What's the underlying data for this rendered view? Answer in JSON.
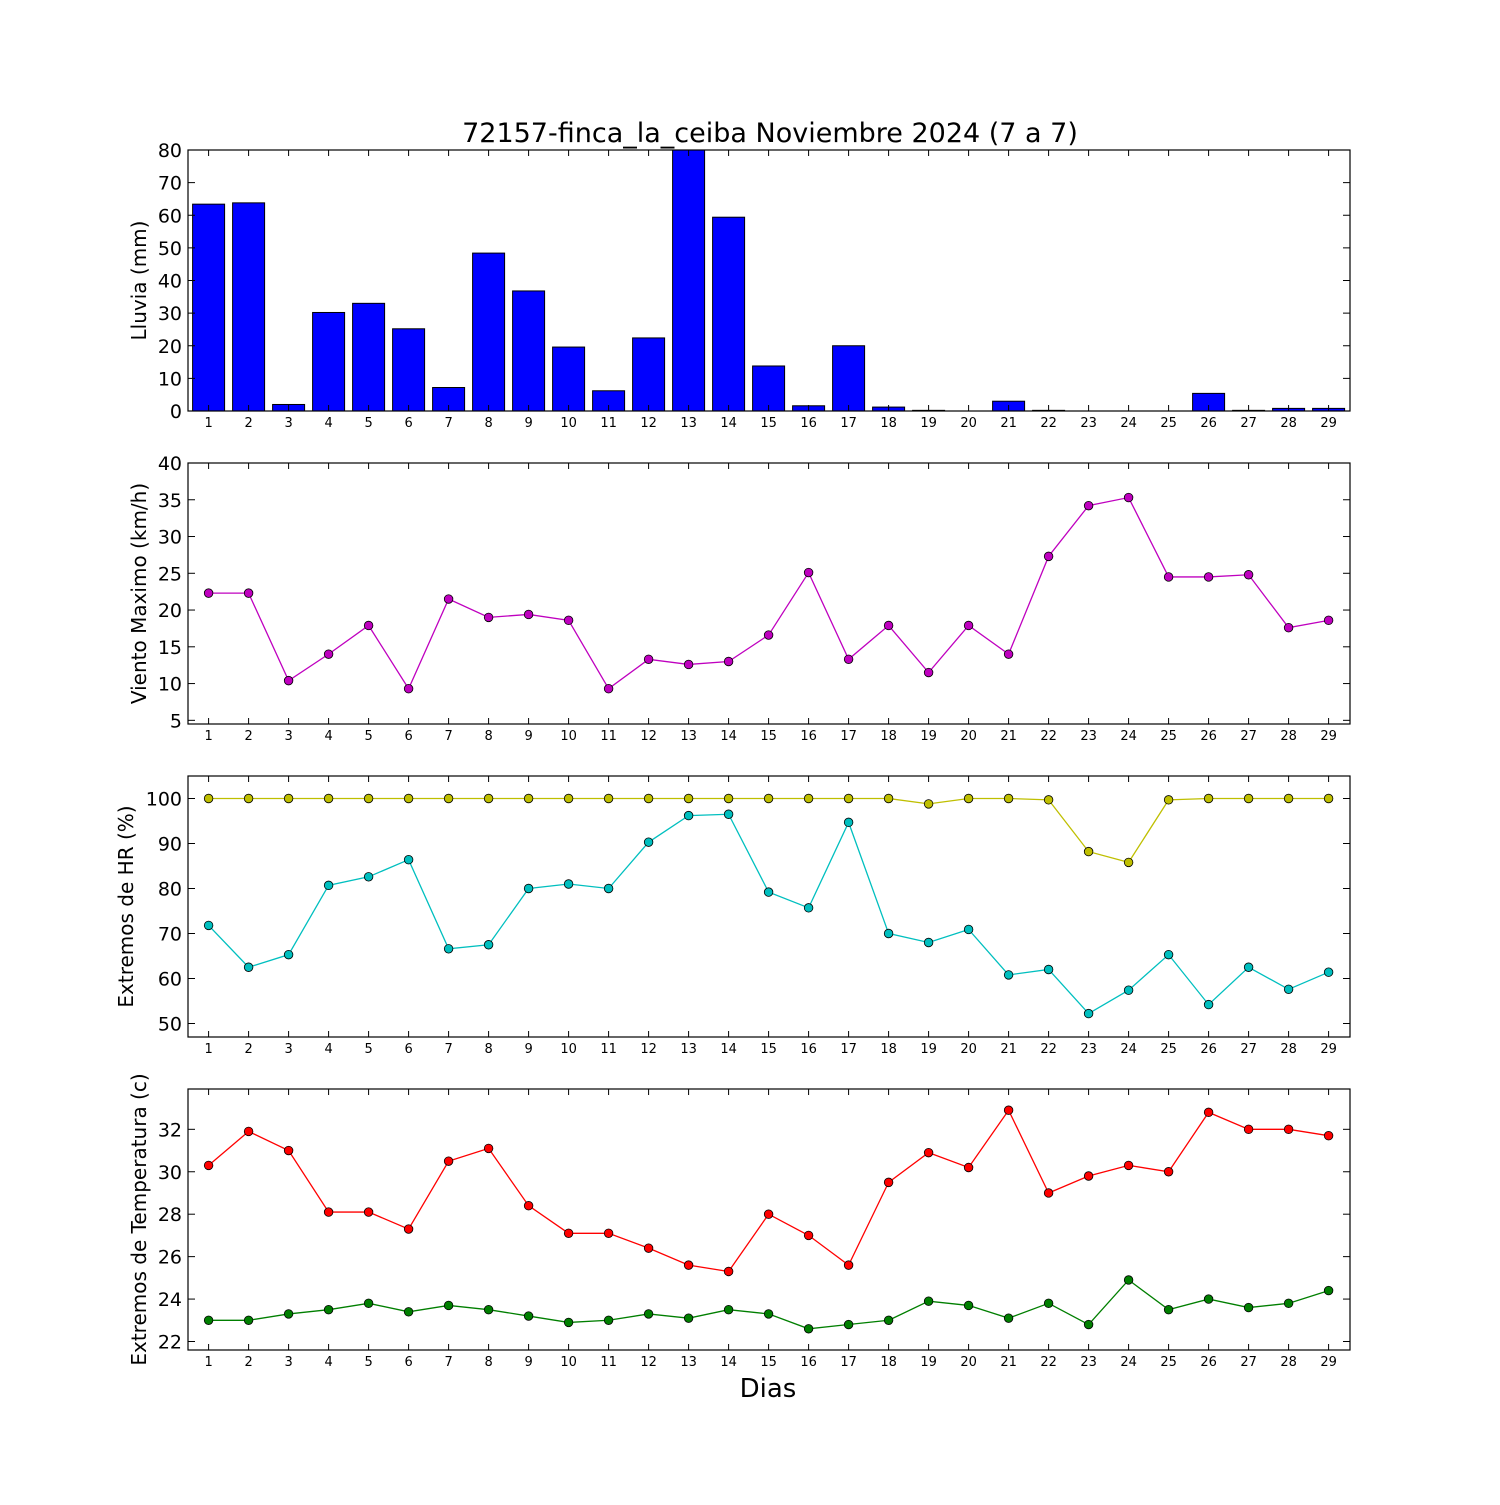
{
  "chart_data": {
    "title": "72157-finca_la_ceiba Noviembre 2024  (7 a 7)",
    "xlabel": "Dias",
    "categories": [
      1,
      2,
      3,
      4,
      5,
      6,
      7,
      8,
      9,
      10,
      11,
      12,
      13,
      14,
      15,
      16,
      17,
      18,
      19,
      20,
      21,
      22,
      23,
      24,
      25,
      26,
      27,
      28,
      29
    ],
    "panels": [
      {
        "type": "bar",
        "ylabel": "Lluvia (mm)",
        "ylim": [
          0,
          80
        ],
        "yticks": [
          0,
          10,
          20,
          30,
          40,
          50,
          60,
          70,
          80
        ],
        "series": [
          {
            "color": "#0000ff",
            "values": [
              63.4,
              63.8,
              2.0,
              30.2,
              33.0,
              25.2,
              7.2,
              48.4,
              36.8,
              19.6,
              6.2,
              22.4,
              80.0,
              59.4,
              13.8,
              1.6,
              20.0,
              1.2,
              0.2,
              0.0,
              3.0,
              0.2,
              0.0,
              0.0,
              0.0,
              5.4,
              0.2,
              0.8,
              0.8
            ]
          }
        ]
      },
      {
        "type": "line",
        "ylabel": "Viento Maximo (km/h)",
        "ylim": [
          4.5,
          40
        ],
        "yticks": [
          5,
          10,
          15,
          20,
          25,
          30,
          35,
          40
        ],
        "series": [
          {
            "color": "#bf00bf",
            "values": [
              22.3,
              22.3,
              10.4,
              14.0,
              17.9,
              9.3,
              21.5,
              19.0,
              19.4,
              18.6,
              9.3,
              13.3,
              12.6,
              13.0,
              16.6,
              25.1,
              13.3,
              17.9,
              11.5,
              17.9,
              14.0,
              27.3,
              34.2,
              35.3,
              24.5,
              24.5,
              24.8,
              17.6,
              18.6
            ]
          }
        ]
      },
      {
        "type": "line",
        "ylabel": "Extremos de HR (%)",
        "ylim": [
          47,
          105
        ],
        "yticks": [
          50,
          60,
          70,
          80,
          90,
          100
        ],
        "series": [
          {
            "color": "#bfbf00",
            "values": [
              100,
              100,
              100,
              100,
              100,
              100,
              100,
              100,
              100,
              100,
              100,
              100,
              100,
              100,
              100,
              100,
              100,
              100,
              98.8,
              100,
              100,
              99.7,
              88.2,
              85.8,
              99.7,
              100,
              100,
              100,
              100
            ]
          },
          {
            "color": "#00bfbf",
            "values": [
              71.8,
              62.5,
              65.3,
              80.7,
              82.6,
              86.4,
              66.6,
              67.5,
              80.0,
              81.0,
              80.0,
              90.3,
              96.2,
              96.5,
              79.2,
              75.7,
              94.7,
              70.0,
              68.0,
              70.9,
              60.8,
              62.0,
              52.2,
              57.4,
              65.3,
              54.2,
              62.5,
              57.6,
              61.4
            ]
          }
        ]
      },
      {
        "type": "line",
        "ylabel": "Extremos de Temperatura (c)",
        "ylim": [
          21.6,
          33.9
        ],
        "yticks": [
          22,
          24,
          26,
          28,
          30,
          32
        ],
        "series": [
          {
            "color": "#ff0000",
            "values": [
              30.3,
              31.9,
              31.0,
              28.1,
              28.1,
              27.3,
              30.5,
              31.1,
              28.4,
              27.1,
              27.1,
              26.4,
              25.6,
              25.3,
              28.0,
              27.0,
              25.6,
              29.5,
              30.9,
              30.2,
              32.9,
              29.0,
              29.8,
              30.3,
              30.0,
              32.8,
              32.0,
              32.0,
              31.7
            ]
          },
          {
            "color": "#007f00",
            "values": [
              23.0,
              23.0,
              23.3,
              23.5,
              23.8,
              23.4,
              23.7,
              23.5,
              23.2,
              22.9,
              23.0,
              23.3,
              23.1,
              23.5,
              23.3,
              22.6,
              22.8,
              23.0,
              23.9,
              23.7,
              23.1,
              23.8,
              22.8,
              24.9,
              23.5,
              24.0,
              23.6,
              23.8,
              24.4
            ]
          }
        ]
      }
    ]
  }
}
